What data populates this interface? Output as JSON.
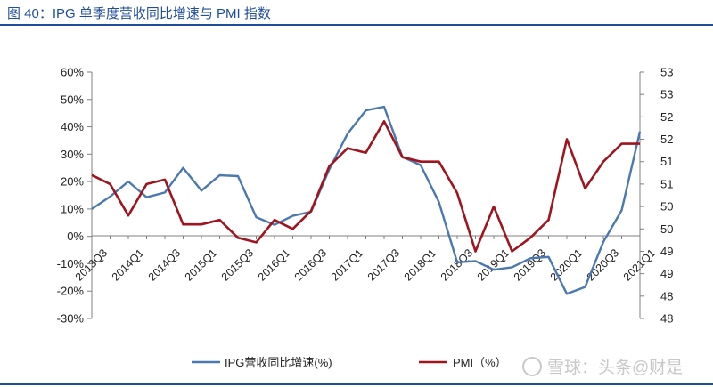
{
  "title": "图 40：IPG 单季度营收同比增速与 PMI 指数",
  "watermark": "雪球：头条@财是",
  "colors": {
    "title": "#1f4e9c",
    "ipg": "#4a78b0",
    "pmi": "#a0141e",
    "axis": "#808080"
  },
  "chart_data": {
    "type": "line",
    "x": [
      "2013Q3",
      "2013Q4",
      "2014Q1",
      "2014Q2",
      "2014Q3",
      "2014Q4",
      "2015Q1",
      "2015Q2",
      "2015Q3",
      "2015Q4",
      "2016Q1",
      "2016Q2",
      "2016Q3",
      "2016Q4",
      "2017Q1",
      "2017Q2",
      "2017Q3",
      "2017Q4",
      "2018Q1",
      "2018Q2",
      "2018Q3",
      "2018Q4",
      "2019Q1",
      "2019Q2",
      "2019Q3",
      "2019Q4",
      "2020Q1",
      "2020Q2",
      "2020Q3",
      "2020Q4",
      "2021Q1"
    ],
    "xticklabels": [
      "2013Q3",
      "2014Q1",
      "2014Q3",
      "2015Q1",
      "2015Q3",
      "2016Q1",
      "2016Q3",
      "2017Q1",
      "2017Q3",
      "2018Q1",
      "2018Q3",
      "2019Q1",
      "2019Q3",
      "2020Q1",
      "2020Q3",
      "2021Q1"
    ],
    "y_left": {
      "ticks": [
        "60%",
        "50%",
        "40%",
        "30%",
        "20%",
        "10%",
        "0%",
        "-10%",
        "-20%",
        "-30%"
      ],
      "ylim": [
        -30,
        60
      ]
    },
    "y_right": {
      "ticks": [
        "53",
        "53",
        "52",
        "52",
        "51",
        "51",
        "50",
        "50",
        "49",
        "49",
        "48",
        "48"
      ],
      "ylim": [
        48,
        53.5
      ]
    },
    "legend_position": "bottom",
    "grid": false,
    "series": [
      {
        "name": "IPG营收同比增速(%)",
        "axis": "left",
        "values": [
          10,
          14.5,
          20,
          14.3,
          16,
          25,
          16.7,
          22.3,
          22,
          7,
          4.2,
          7.5,
          9,
          24.5,
          37.5,
          46,
          47.3,
          29,
          26,
          12.5,
          -9.5,
          -9,
          -12.2,
          -11.3,
          -8,
          -7.5,
          -21,
          -18.5,
          -2,
          9.5,
          38.3
        ]
      },
      {
        "name": "PMI（%）",
        "axis": "right",
        "values": [
          51.2,
          51.0,
          50.3,
          51.0,
          51.1,
          50.1,
          50.1,
          50.2,
          49.8,
          49.7,
          50.2,
          50.0,
          50.4,
          51.4,
          51.8,
          51.7,
          52.4,
          51.6,
          51.5,
          51.5,
          50.8,
          49.5,
          50.5,
          49.5,
          49.8,
          50.2,
          52.0,
          50.9,
          51.5,
          51.9,
          51.9
        ]
      }
    ]
  }
}
